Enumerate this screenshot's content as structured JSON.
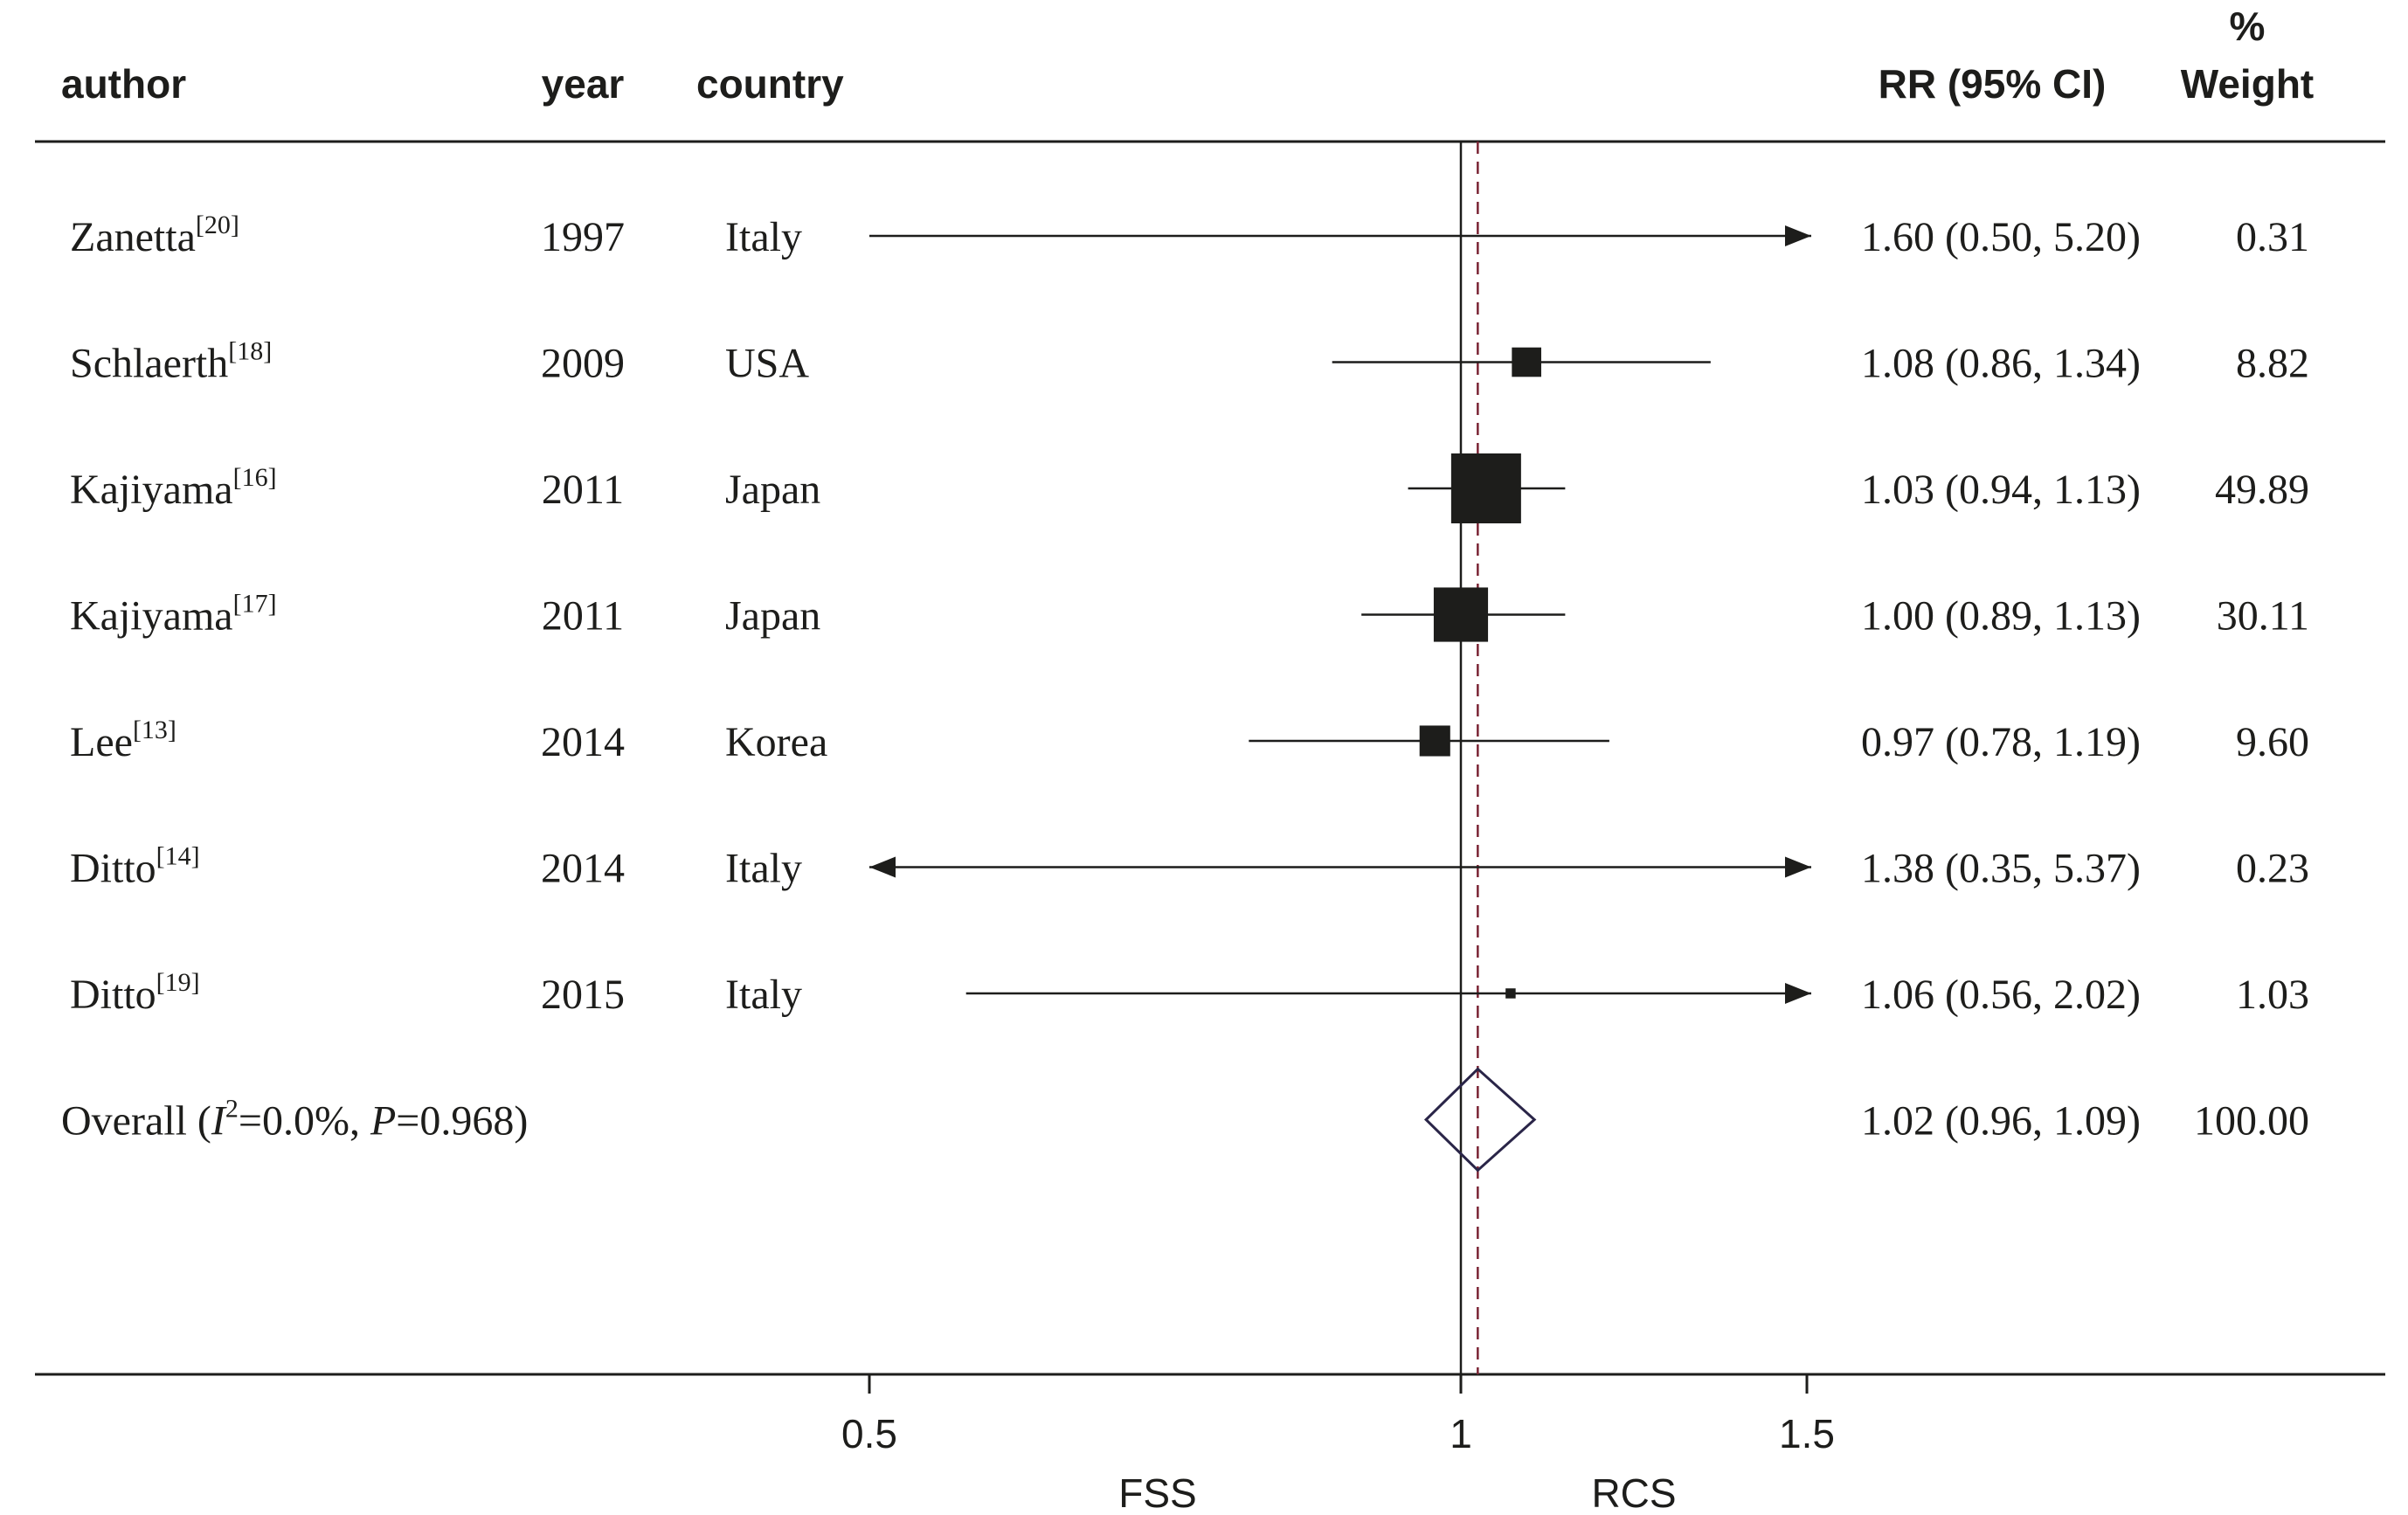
{
  "chart_data": {
    "type": "forest",
    "headers": {
      "author": "author",
      "year": "year",
      "country": "country",
      "rr": "RR (95% CI)",
      "weight_top": "%",
      "weight_bottom": "Weight"
    },
    "studies": [
      {
        "author": "Zanetta",
        "ref": "[20]",
        "year": "1997",
        "country": "Italy",
        "rr": 1.6,
        "lo": 0.5,
        "hi": 5.2,
        "ci_text": "1.60 (0.50, 5.20)",
        "weight": 0.31,
        "weight_text": "0.31"
      },
      {
        "author": "Schlaerth",
        "ref": "[18]",
        "year": "2009",
        "country": "USA",
        "rr": 1.08,
        "lo": 0.86,
        "hi": 1.34,
        "ci_text": "1.08 (0.86, 1.34)",
        "weight": 8.82,
        "weight_text": "8.82"
      },
      {
        "author": "Kajiyama",
        "ref": "[16]",
        "year": "2011",
        "country": "Japan",
        "rr": 1.03,
        "lo": 0.94,
        "hi": 1.13,
        "ci_text": "1.03 (0.94, 1.13)",
        "weight": 49.89,
        "weight_text": "49.89"
      },
      {
        "author": "Kajiyama",
        "ref": "[17]",
        "year": "2011",
        "country": "Japan",
        "rr": 1.0,
        "lo": 0.89,
        "hi": 1.13,
        "ci_text": "1.00 (0.89, 1.13)",
        "weight": 30.11,
        "weight_text": "30.11"
      },
      {
        "author": "Lee",
        "ref": "[13]",
        "year": "2014",
        "country": "Korea",
        "rr": 0.97,
        "lo": 0.78,
        "hi": 1.19,
        "ci_text": "0.97 (0.78, 1.19)",
        "weight": 9.6,
        "weight_text": "9.60"
      },
      {
        "author": "Ditto",
        "ref": "[14]",
        "year": "2014",
        "country": "Italy",
        "rr": 1.38,
        "lo": 0.35,
        "hi": 5.37,
        "ci_text": "1.38 (0.35, 5.37)",
        "weight": 0.23,
        "weight_text": "0.23"
      },
      {
        "author": "Ditto",
        "ref": "[19]",
        "year": "2015",
        "country": "Italy",
        "rr": 1.06,
        "lo": 0.56,
        "hi": 2.02,
        "ci_text": "1.06 (0.56, 2.02)",
        "weight": 1.03,
        "weight_text": "1.03"
      }
    ],
    "overall": {
      "prefix": "Overall  (",
      "i_symbol": "I",
      "sq": "2",
      "i2_text": "=0.0%, ",
      "p_symbol": "P",
      "p_text": "=0.968)",
      "rr": 1.02,
      "lo": 0.96,
      "hi": 1.09,
      "ci_text": "1.02 (0.96, 1.09)",
      "weight_text": "100.00"
    },
    "x_axis": {
      "scale": "log",
      "range": [
        0.5,
        1.5
      ],
      "ticks": [
        0.5,
        1,
        1.5
      ],
      "tick_labels": [
        "0.5",
        "1",
        "1.5"
      ],
      "null_value": 1,
      "left_label": "FSS",
      "right_label": "RCS"
    },
    "colors": {
      "ink": "#1d1d1b",
      "overall_line": "#7a2434",
      "diamond": "#2a2548"
    }
  }
}
